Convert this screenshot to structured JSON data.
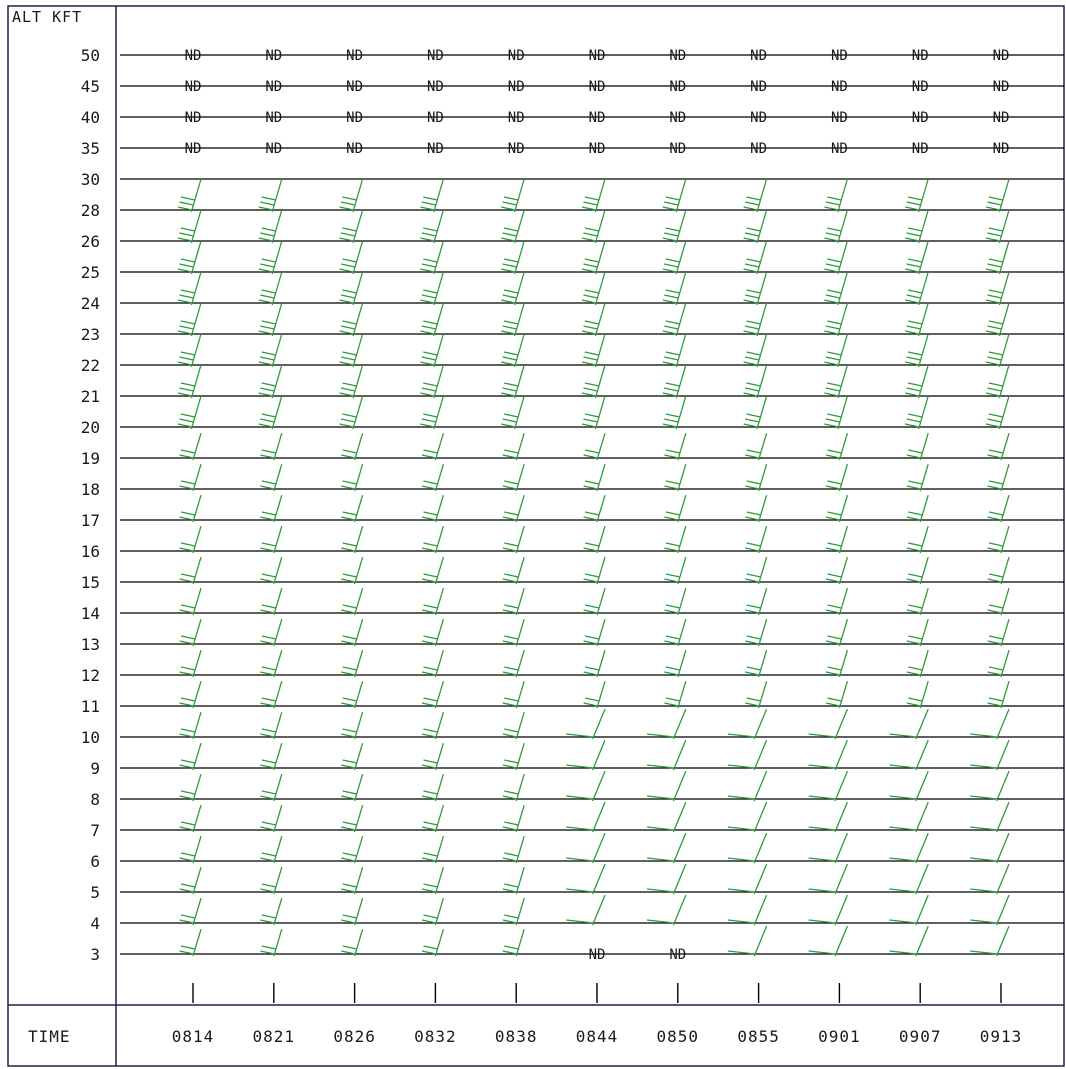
{
  "chart_data": {
    "type": "wind_barb_profile",
    "title": "",
    "ylabel": "ALT KFT",
    "xlabel": "TIME",
    "altitudes_kft": [
      "50",
      "45",
      "40",
      "35",
      "30",
      "28",
      "26",
      "25",
      "24",
      "23",
      "22",
      "21",
      "20",
      "19",
      "18",
      "17",
      "16",
      "15",
      "14",
      "13",
      "12",
      "11",
      "10",
      "9",
      "8",
      "7",
      "6",
      "5",
      "4",
      "3"
    ],
    "times": [
      "0814",
      "0821",
      "0826",
      "0832",
      "0838",
      "0844",
      "0850",
      "0855",
      "0901",
      "0907",
      "0913"
    ],
    "no_data_label": "ND",
    "no_data_levels_kft": [
      "50",
      "45",
      "40",
      "35"
    ],
    "no_data_low": [
      {
        "time": "0844",
        "altitude_kft": "3"
      },
      {
        "time": "0850",
        "altitude_kft": "3"
      }
    ],
    "barb_levels_kft": [
      "28",
      "26",
      "25",
      "24",
      "23",
      "22",
      "21",
      "20",
      "19",
      "18",
      "17",
      "16",
      "15",
      "14",
      "13",
      "12",
      "11",
      "10",
      "9",
      "8",
      "7",
      "6",
      "5",
      "4",
      "3"
    ],
    "wind_description": {
      "upper_20_28_kft": "strong westerly flow, multiple full barbs",
      "mid_8_19_kft": "westerly flow, moderate to strong",
      "low_3_7_kft": "veering/backing light winds at later times"
    },
    "colors": {
      "barb": "#2e9a3a",
      "grid": "#000000",
      "text": "#1a1a1a",
      "frame": "#2a1a4a"
    },
    "grid": true
  }
}
